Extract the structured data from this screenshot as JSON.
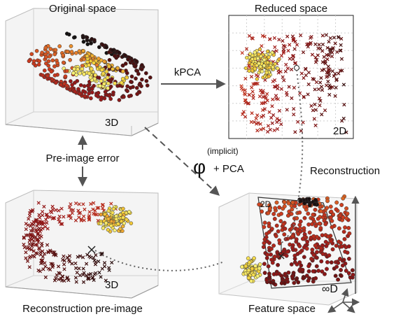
{
  "panels": {
    "original": {
      "title": "Original space",
      "dim": "3D"
    },
    "reduced": {
      "title": "Reduced space",
      "dim": "2D"
    },
    "reconstruction": {
      "title": "Reconstruction pre-image",
      "dim": "3D"
    },
    "feature": {
      "title": "Feature space",
      "plane_label": "2D",
      "dim": "∞D"
    }
  },
  "arrows": {
    "kpca": "kPCA",
    "phi_symbol": "φ",
    "phi_superscript": "(implicit)",
    "phi_pca": "+ PCA",
    "pre_image_error": "Pre-image error",
    "reconstruction": "Reconstruction"
  },
  "colors": {
    "text": "#111111",
    "arrow": "#555555",
    "dotted": "#666666",
    "grid": "#cfcfcf",
    "scatter_gradient": [
      "#111111",
      "#5a1010",
      "#9b1a1a",
      "#cc3a1e",
      "#e8842a",
      "#f4d23a",
      "#f7f27a"
    ]
  }
}
